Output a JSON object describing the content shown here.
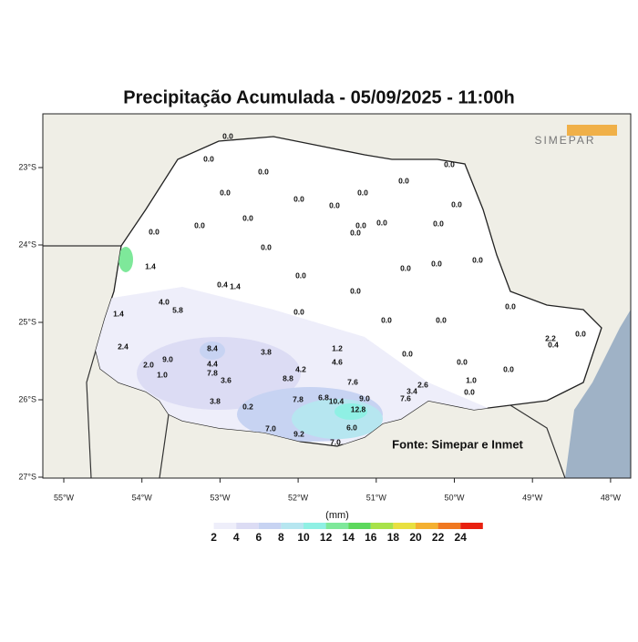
{
  "map": {
    "title": "Precipitação Acumulada - 05/09/2025 - 11:00h",
    "logo": "SIMEPAR",
    "source": "Fonte: Simepar e Inmet",
    "lat_ticks": [
      "23°S",
      "24°S",
      "25°S",
      "26°S",
      "27°S"
    ],
    "lon_ticks": [
      "55°W",
      "54°W",
      "53°W",
      "52°W",
      "51°W",
      "50°W",
      "49°W",
      "48°W"
    ],
    "legend": {
      "unit": "(mm)",
      "labels": [
        2,
        4,
        6,
        8,
        10,
        12,
        14,
        16,
        18,
        20,
        22,
        24
      ],
      "colors": [
        "#ffffff",
        "#eeeefa",
        "#dcdcf4",
        "#c7d3f2",
        "#b6e6f0",
        "#8ff0e4",
        "#7ee89a",
        "#5cd85c",
        "#a8e24a",
        "#e8e040",
        "#f4b030",
        "#f07820",
        "#e82010"
      ]
    },
    "stations": [
      "0.0",
      "0.0",
      "0.0",
      "0.0",
      "0.0",
      "0.0",
      "0.0",
      "0.0",
      "0.0",
      "0.0",
      "0.0",
      "0.0",
      "0.0",
      "0.0",
      "0.0",
      "0.0",
      "0.0",
      "0.0",
      "1.4",
      "0.0",
      "0.0",
      "0.0",
      "0.0",
      "0.4",
      "1.4",
      "0.0",
      "4.0",
      "5.8",
      "1.4",
      "0.0",
      "0.0",
      "0.0",
      "0.0",
      "2.4",
      "8.4",
      "3.8",
      "1.2",
      "0.0",
      "4.6",
      "9.0",
      "0.0",
      "2.0",
      "1.0",
      "4.4",
      "7.8",
      "3.6",
      "4.2",
      "8.8",
      "7.6",
      "1.0",
      "0.0",
      "0.0",
      "3.8",
      "7.8",
      "6.8",
      "10.4",
      "9.0",
      "3.4",
      "2.6",
      "0.2",
      "12.8",
      "7.6",
      "7.0",
      "9.2",
      "6.0",
      "7.0",
      "2.2",
      "0.4",
      "0.0"
    ]
  }
}
